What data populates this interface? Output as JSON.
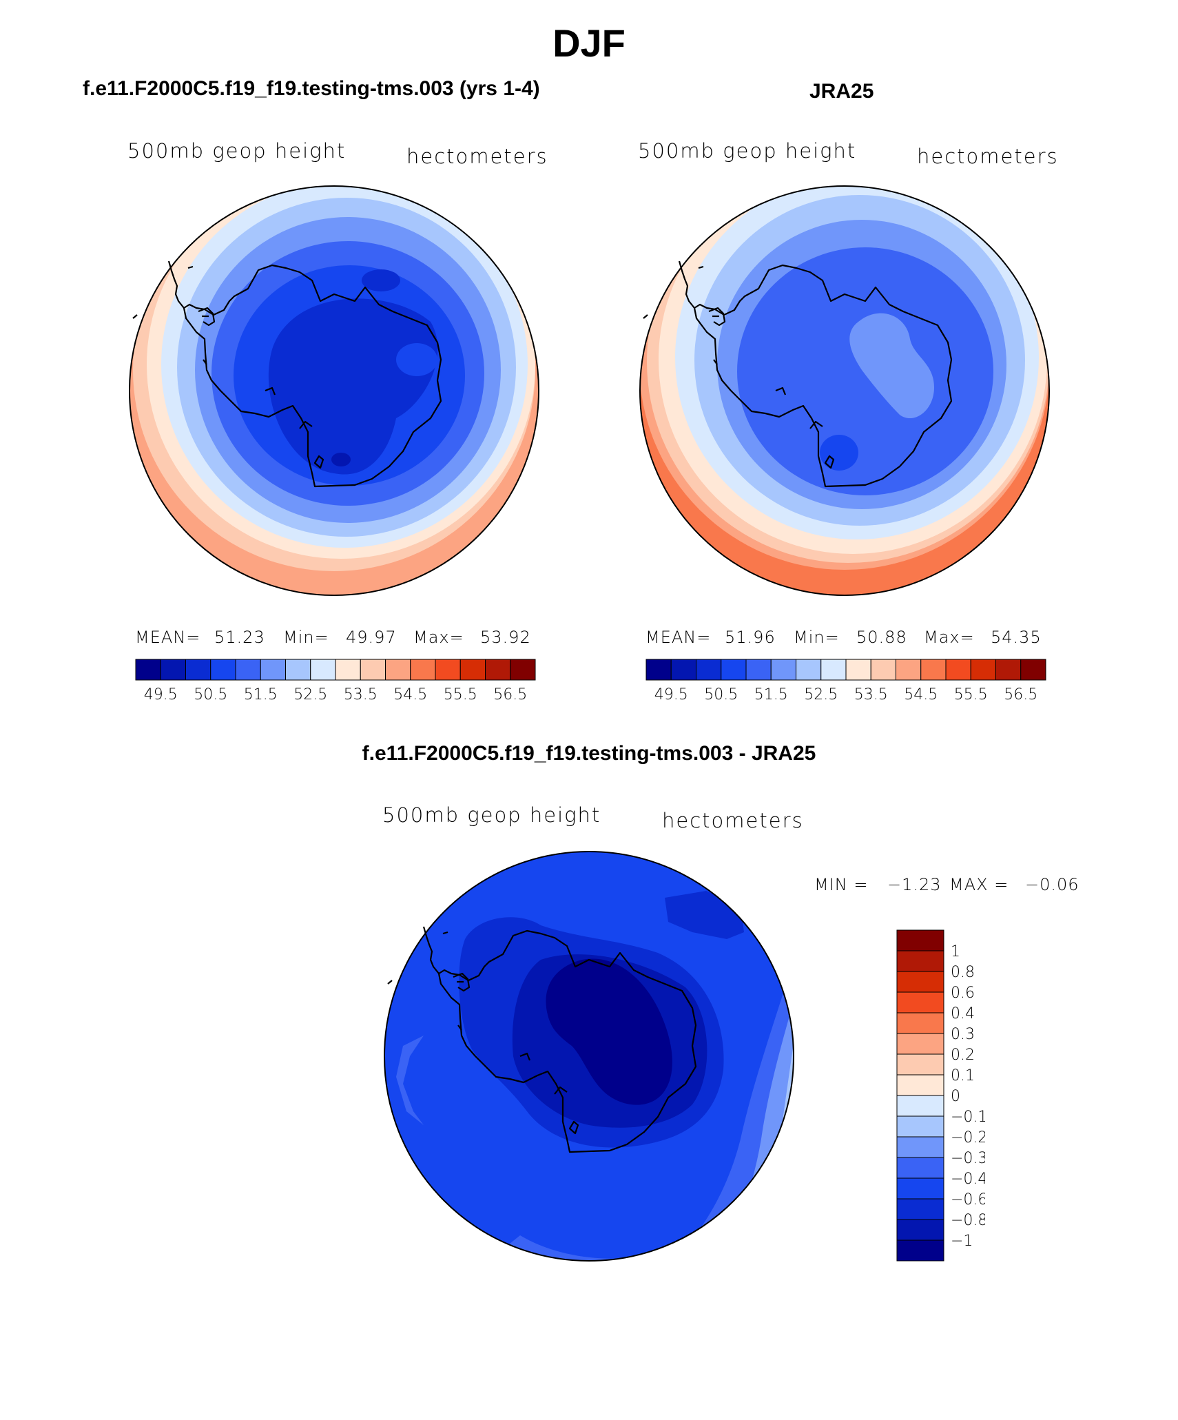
{
  "page": {
    "title": "DJF",
    "diff_title": "f.e11.F2000C5.f19_f19.testing-tms.003 - JRA25"
  },
  "colors": {
    "abs_palette": [
      "#00008B",
      "#0316B0",
      "#0A2CD2",
      "#1646EF",
      "#3A63F5",
      "#7096FA",
      "#A7C6FD",
      "#D8E9FE",
      "#FFE8D7",
      "#FDCBB1",
      "#FCA482",
      "#F9784C",
      "#F24B20",
      "#D62D05",
      "#B01906",
      "#800000"
    ],
    "diff_palette": [
      "#00008B",
      "#0316B0",
      "#0A2CD2",
      "#1646EF",
      "#3A63F5",
      "#7096FA",
      "#A7C6FD",
      "#D8E9FE",
      "#FFE8D7",
      "#FDCBB1",
      "#FCA482",
      "#F9784C",
      "#F24B20",
      "#D62D05",
      "#B01906",
      "#800000"
    ],
    "coastline": "#000000"
  },
  "chart_data": [
    {
      "type": "heatmap",
      "projection": "south-polar-stereographic",
      "title": "f.e11.F2000C5.f19_f19.testing-tms.003 (yrs 1-4)",
      "variable": "500mb geop height",
      "units": "hectometers",
      "stats": {
        "mean_label": "MEAN=",
        "mean": "51.23",
        "min_label": "Min=",
        "min": "49.97",
        "max_label": "Max=",
        "max": "53.92"
      },
      "colorbar_ticks": [
        "49.5",
        "50.5",
        "51.5",
        "52.5",
        "53.5",
        "54.5",
        "55.5",
        "56.5"
      ],
      "contour_levels": [
        49.5,
        50,
        50.5,
        51,
        51.5,
        52,
        52.5,
        53,
        53.5,
        54,
        54.5,
        55,
        55.5,
        56,
        56.5
      ],
      "field_by_latitude": [
        {
          "lat": -90,
          "value": 50.0
        },
        {
          "lat": -75,
          "value": 50.4
        },
        {
          "lat": -60,
          "value": 51.6
        },
        {
          "lat": -50,
          "value": 52.8
        },
        {
          "lat": -45,
          "value": 53.4
        },
        {
          "lat": -40,
          "value": 53.9
        }
      ]
    },
    {
      "type": "heatmap",
      "projection": "south-polar-stereographic",
      "title": "JRA25",
      "variable": "500mb geop height",
      "units": "hectometers",
      "stats": {
        "mean_label": "MEAN=",
        "mean": "51.96",
        "min_label": "Min=",
        "min": "50.88",
        "max_label": "Max=",
        "max": "54.35"
      },
      "colorbar_ticks": [
        "49.5",
        "50.5",
        "51.5",
        "52.5",
        "53.5",
        "54.5",
        "55.5",
        "56.5"
      ],
      "contour_levels": [
        49.5,
        50,
        50.5,
        51,
        51.5,
        52,
        52.5,
        53,
        53.5,
        54,
        54.5,
        55,
        55.5,
        56,
        56.5
      ],
      "field_by_latitude": [
        {
          "lat": -90,
          "value": 51.2
        },
        {
          "lat": -75,
          "value": 51.1
        },
        {
          "lat": -60,
          "value": 52.2
        },
        {
          "lat": -50,
          "value": 53.2
        },
        {
          "lat": -45,
          "value": 53.8
        },
        {
          "lat": -40,
          "value": 54.35
        }
      ]
    },
    {
      "type": "heatmap",
      "projection": "south-polar-stereographic",
      "title": "f.e11.F2000C5.f19_f19.testing-tms.003 - JRA25",
      "variable": "500mb geop height",
      "units": "hectometers",
      "stats": {
        "min_label": "MIN =",
        "min": "−1.23",
        "max_label": "MAX =",
        "max": "−0.06"
      },
      "colorbar_ticks": [
        "1",
        "0.8",
        "0.6",
        "0.4",
        "0.3",
        "0.2",
        "0.1",
        "0",
        "−0.1",
        "−0.2",
        "−0.3",
        "−0.4",
        "−0.6",
        "−0.8",
        "−1"
      ],
      "contour_levels": [
        -1,
        -0.8,
        -0.6,
        -0.4,
        -0.3,
        -0.2,
        -0.1,
        0,
        0.1,
        0.2,
        0.3,
        0.4,
        0.6,
        0.8,
        1
      ],
      "field_by_latitude": [
        {
          "lat": -90,
          "value": -1.1
        },
        {
          "lat": -75,
          "value": -0.75
        },
        {
          "lat": -60,
          "value": -0.45
        },
        {
          "lat": -50,
          "value": -0.4
        },
        {
          "lat": -40,
          "value": -0.35
        }
      ]
    }
  ]
}
